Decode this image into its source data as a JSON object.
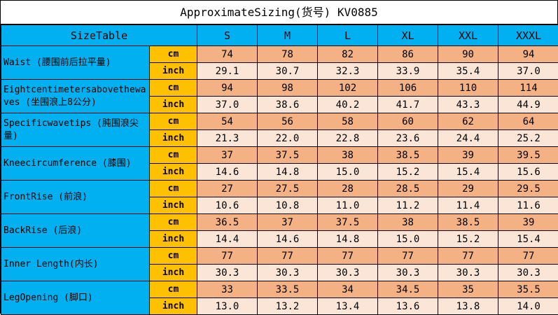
{
  "title": "ApproximateSizing(货号) KV0885",
  "header": {
    "label": "SizeTable",
    "sizes": [
      "S",
      "M",
      "L",
      "XL",
      "XXL",
      "XXXL"
    ]
  },
  "rows": [
    {
      "name": "Waist (腰围前后拉平量)",
      "cm": [
        "74",
        "78",
        "82",
        "86",
        "90",
        "94"
      ],
      "inch": [
        "29.1",
        "30.7",
        "32.3",
        "33.9",
        "35.4",
        "37.0"
      ]
    },
    {
      "name": "Eightcentimetersabovethewaves (坐围浪上8公分)",
      "cm": [
        "94",
        "98",
        "102",
        "106",
        "110",
        "114"
      ],
      "inch": [
        "37.0",
        "38.6",
        "40.2",
        "41.7",
        "43.3",
        "44.9"
      ]
    },
    {
      "name": "Specificwavetips (肫围浪尖量)",
      "cm": [
        "54",
        "56",
        "58",
        "60",
        "62",
        "64"
      ],
      "inch": [
        "21.3",
        "22.0",
        "22.8",
        "23.6",
        "24.4",
        "25.2"
      ]
    },
    {
      "name": "Kneecircumference (膝围)",
      "cm": [
        "37",
        "37.5",
        "38",
        "38.5",
        "39",
        "39.5"
      ],
      "inch": [
        "14.6",
        "14.8",
        "15.0",
        "15.2",
        "15.4",
        "15.6"
      ]
    },
    {
      "name": "FrontRise (前浪)",
      "cm": [
        "27",
        "27.5",
        "28",
        "28.5",
        "29",
        "29.5"
      ],
      "inch": [
        "10.6",
        "10.8",
        "11.0",
        "11.2",
        "11.4",
        "11.6"
      ]
    },
    {
      "name": "BackRise (后浪)",
      "cm": [
        "36.5",
        "37",
        "37.5",
        "38",
        "38.5",
        "39"
      ],
      "inch": [
        "14.4",
        "14.6",
        "14.8",
        "15.0",
        "15.2",
        "15.4"
      ]
    },
    {
      "name": "Inner Length(内长)",
      "cm": [
        "77",
        "77",
        "77",
        "77",
        "77",
        "77"
      ],
      "inch": [
        "30.3",
        "30.3",
        "30.3",
        "30.3",
        "30.3",
        "30.3"
      ]
    },
    {
      "name": "LegOpening (脚口)",
      "cm": [
        "33",
        "33.5",
        "34",
        "34.5",
        "35",
        "35.5"
      ],
      "inch": [
        "13.0",
        "13.2",
        "13.4",
        "13.6",
        "13.8",
        "14.0"
      ]
    }
  ],
  "units": {
    "cm": "cm",
    "inch": "inch"
  },
  "colors": {
    "header": "#00b0f0",
    "unit": "#ffc000",
    "cm_cell": "#f4b183",
    "inch_cell": "#fbe5d6"
  }
}
